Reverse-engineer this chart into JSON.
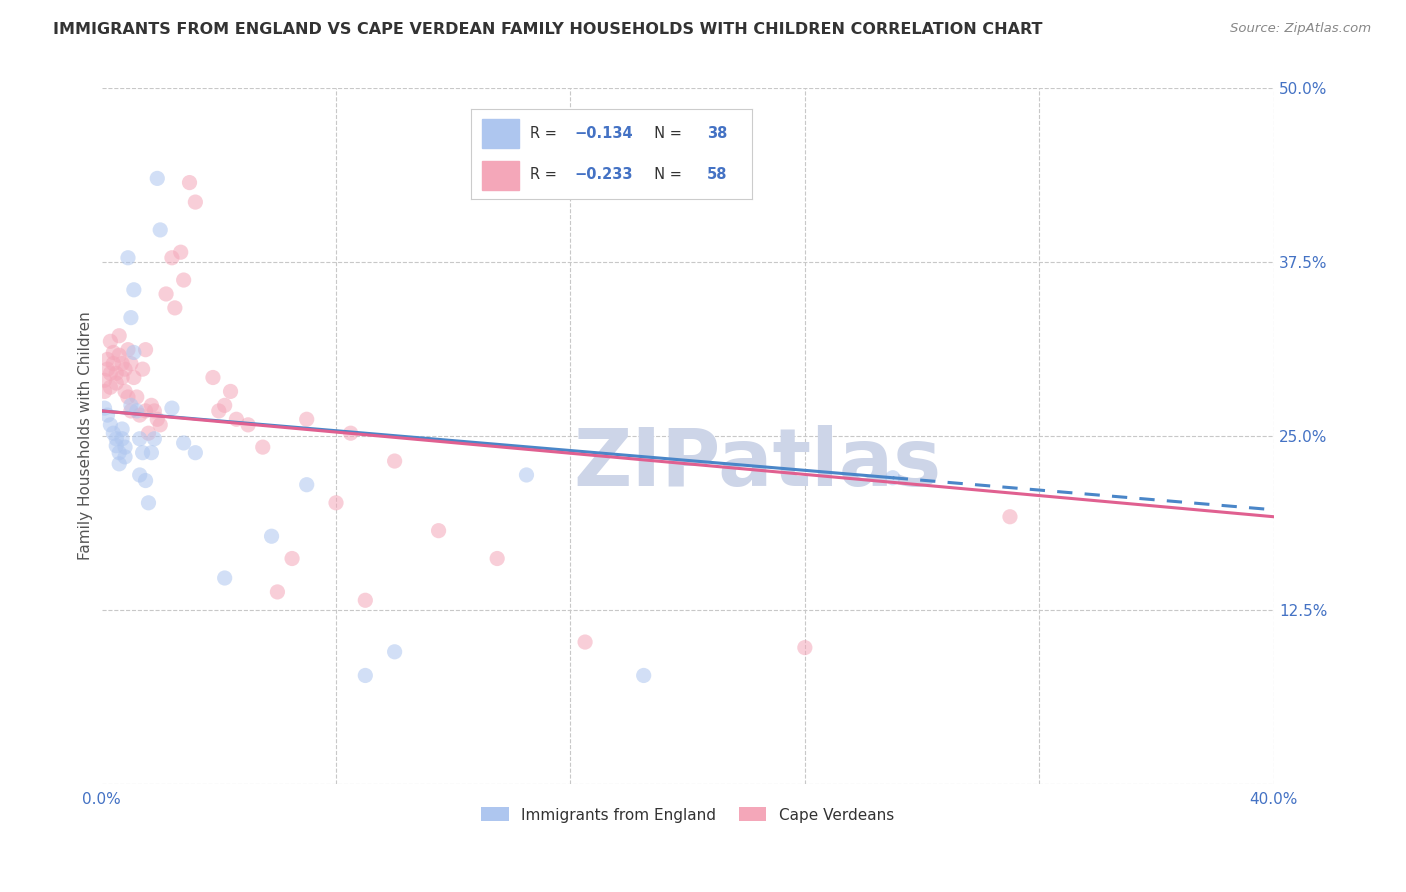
{
  "title": "IMMIGRANTS FROM ENGLAND VS CAPE VERDEAN FAMILY HOUSEHOLDS WITH CHILDREN CORRELATION CHART",
  "source": "Source: ZipAtlas.com",
  "ylabel": "Family Households with Children",
  "xlim": [
    0.0,
    0.4
  ],
  "ylim": [
    0.0,
    0.5
  ],
  "xticks": [
    0.0,
    0.08,
    0.16,
    0.24,
    0.32,
    0.4
  ],
  "yticks": [
    0.0,
    0.125,
    0.25,
    0.375,
    0.5
  ],
  "watermark": "ZIPatlas",
  "england_scatter": [
    [
      0.001,
      0.27
    ],
    [
      0.002,
      0.265
    ],
    [
      0.003,
      0.258
    ],
    [
      0.004,
      0.252
    ],
    [
      0.005,
      0.248
    ],
    [
      0.005,
      0.243
    ],
    [
      0.006,
      0.238
    ],
    [
      0.006,
      0.23
    ],
    [
      0.007,
      0.255
    ],
    [
      0.007,
      0.248
    ],
    [
      0.008,
      0.242
    ],
    [
      0.008,
      0.235
    ],
    [
      0.009,
      0.378
    ],
    [
      0.01,
      0.335
    ],
    [
      0.01,
      0.272
    ],
    [
      0.011,
      0.355
    ],
    [
      0.011,
      0.31
    ],
    [
      0.012,
      0.268
    ],
    [
      0.013,
      0.248
    ],
    [
      0.013,
      0.222
    ],
    [
      0.014,
      0.238
    ],
    [
      0.015,
      0.218
    ],
    [
      0.016,
      0.202
    ],
    [
      0.017,
      0.238
    ],
    [
      0.018,
      0.248
    ],
    [
      0.019,
      0.435
    ],
    [
      0.02,
      0.398
    ],
    [
      0.024,
      0.27
    ],
    [
      0.028,
      0.245
    ],
    [
      0.032,
      0.238
    ],
    [
      0.042,
      0.148
    ],
    [
      0.058,
      0.178
    ],
    [
      0.07,
      0.215
    ],
    [
      0.09,
      0.078
    ],
    [
      0.1,
      0.095
    ],
    [
      0.145,
      0.222
    ],
    [
      0.185,
      0.078
    ],
    [
      0.27,
      0.22
    ]
  ],
  "capeverde_scatter": [
    [
      0.001,
      0.29
    ],
    [
      0.001,
      0.282
    ],
    [
      0.002,
      0.305
    ],
    [
      0.002,
      0.298
    ],
    [
      0.003,
      0.318
    ],
    [
      0.003,
      0.295
    ],
    [
      0.003,
      0.285
    ],
    [
      0.004,
      0.31
    ],
    [
      0.004,
      0.302
    ],
    [
      0.005,
      0.295
    ],
    [
      0.005,
      0.288
    ],
    [
      0.006,
      0.322
    ],
    [
      0.006,
      0.308
    ],
    [
      0.007,
      0.302
    ],
    [
      0.007,
      0.292
    ],
    [
      0.008,
      0.282
    ],
    [
      0.008,
      0.298
    ],
    [
      0.009,
      0.312
    ],
    [
      0.009,
      0.278
    ],
    [
      0.01,
      0.302
    ],
    [
      0.01,
      0.268
    ],
    [
      0.011,
      0.292
    ],
    [
      0.012,
      0.278
    ],
    [
      0.013,
      0.265
    ],
    [
      0.014,
      0.298
    ],
    [
      0.015,
      0.312
    ],
    [
      0.015,
      0.268
    ],
    [
      0.016,
      0.252
    ],
    [
      0.017,
      0.272
    ],
    [
      0.018,
      0.268
    ],
    [
      0.019,
      0.262
    ],
    [
      0.02,
      0.258
    ],
    [
      0.022,
      0.352
    ],
    [
      0.024,
      0.378
    ],
    [
      0.025,
      0.342
    ],
    [
      0.027,
      0.382
    ],
    [
      0.028,
      0.362
    ],
    [
      0.03,
      0.432
    ],
    [
      0.032,
      0.418
    ],
    [
      0.038,
      0.292
    ],
    [
      0.04,
      0.268
    ],
    [
      0.042,
      0.272
    ],
    [
      0.044,
      0.282
    ],
    [
      0.046,
      0.262
    ],
    [
      0.05,
      0.258
    ],
    [
      0.055,
      0.242
    ],
    [
      0.06,
      0.138
    ],
    [
      0.065,
      0.162
    ],
    [
      0.07,
      0.262
    ],
    [
      0.08,
      0.202
    ],
    [
      0.085,
      0.252
    ],
    [
      0.09,
      0.132
    ],
    [
      0.1,
      0.232
    ],
    [
      0.115,
      0.182
    ],
    [
      0.135,
      0.162
    ],
    [
      0.165,
      0.102
    ],
    [
      0.24,
      0.098
    ],
    [
      0.31,
      0.192
    ]
  ],
  "england_line_solid": [
    [
      0.0,
      0.268
    ],
    [
      0.27,
      0.22
    ]
  ],
  "england_line_dash": [
    [
      0.27,
      0.22
    ],
    [
      0.4,
      0.197
    ]
  ],
  "capeverde_line_solid": [
    [
      0.0,
      0.268
    ],
    [
      0.4,
      0.192
    ]
  ],
  "england_line_color": "#4a86c8",
  "capeverde_line_color": "#e06090",
  "england_scatter_color": "#aec6ef",
  "capeverde_scatter_color": "#f4a7b9",
  "background_color": "#ffffff",
  "grid_color": "#c8c8c8",
  "title_color": "#333333",
  "axis_color": "#4472c4",
  "watermark_color": "#cdd5e8",
  "scatter_size": 120,
  "scatter_alpha": 0.55,
  "line_width": 2.2
}
